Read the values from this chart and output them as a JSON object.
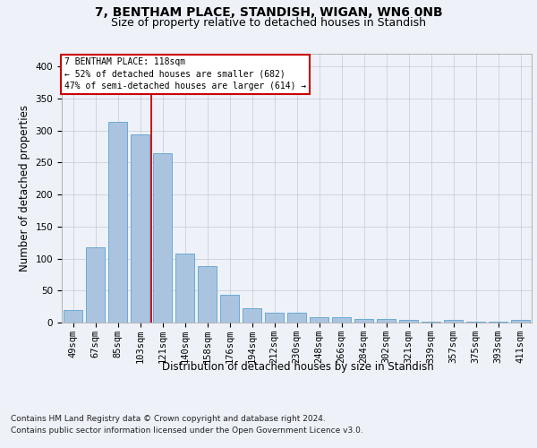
{
  "title1": "7, BENTHAM PLACE, STANDISH, WIGAN, WN6 0NB",
  "title2": "Size of property relative to detached houses in Standish",
  "xlabel": "Distribution of detached houses by size in Standish",
  "ylabel": "Number of detached properties",
  "categories": [
    "49sqm",
    "67sqm",
    "85sqm",
    "103sqm",
    "121sqm",
    "140sqm",
    "158sqm",
    "176sqm",
    "194sqm",
    "212sqm",
    "230sqm",
    "248sqm",
    "266sqm",
    "284sqm",
    "302sqm",
    "321sqm",
    "339sqm",
    "357sqm",
    "375sqm",
    "393sqm",
    "411sqm"
  ],
  "values": [
    20,
    118,
    313,
    294,
    265,
    108,
    88,
    43,
    22,
    16,
    16,
    9,
    9,
    5,
    5,
    4,
    2,
    4,
    1,
    1,
    4
  ],
  "bar_color": "#aac4e0",
  "bar_edge_color": "#6aaad4",
  "vline_color": "#cc0000",
  "vline_x_index": 4,
  "annotation_lines": [
    "7 BENTHAM PLACE: 118sqm",
    "← 52% of detached houses are smaller (682)",
    "47% of semi-detached houses are larger (614) →"
  ],
  "annotation_box_color": "#ffffff",
  "annotation_box_edge": "#cc0000",
  "ylim": [
    0,
    420
  ],
  "yticks": [
    0,
    50,
    100,
    150,
    200,
    250,
    300,
    350,
    400
  ],
  "footer_line1": "Contains HM Land Registry data © Crown copyright and database right 2024.",
  "footer_line2": "Contains public sector information licensed under the Open Government Licence v3.0.",
  "bg_color": "#eef2f8",
  "grid_color": "#c8d0dc",
  "title1_fontsize": 10,
  "title2_fontsize": 9,
  "tick_fontsize": 7.5,
  "ylabel_fontsize": 8.5,
  "xlabel_fontsize": 8.5,
  "footer_fontsize": 6.5
}
